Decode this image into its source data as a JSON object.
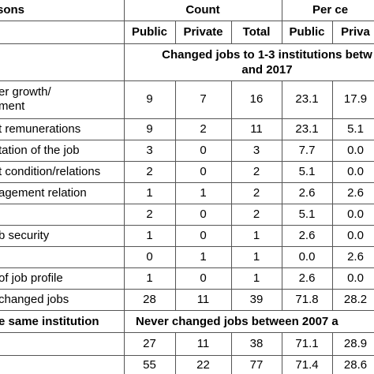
{
  "header": {
    "reasons": "sons",
    "count": "Count",
    "per_cent": "Per ce",
    "columns": [
      "Public",
      "Private",
      "Total",
      "Public",
      "Priva"
    ]
  },
  "section_1": {
    "title_lines": [
      "Changed jobs to 1-3 institutions betw",
      "and 2017"
    ],
    "rows": [
      {
        "label": [
          "er growth/",
          "ment"
        ],
        "cells": [
          "9",
          "7",
          "16",
          "23.1",
          "17.9"
        ]
      },
      {
        "label": [
          "t remunerations"
        ],
        "cells": [
          "9",
          "2",
          "11",
          "23.1",
          "5.1"
        ]
      },
      {
        "label": [
          "tation of the job"
        ],
        "cells": [
          "3",
          "0",
          "3",
          "7.7",
          "0.0"
        ]
      },
      {
        "label": [
          "t condition/relations"
        ],
        "cells": [
          "2",
          "0",
          "2",
          "5.1",
          "0.0"
        ]
      },
      {
        "label": [
          "agement relation"
        ],
        "cells": [
          "1",
          "1",
          "2",
          "2.6",
          "2.6"
        ]
      },
      {
        "label": [],
        "cells": [
          "2",
          "0",
          "2",
          "5.1",
          "0.0"
        ]
      },
      {
        "label": [
          "b security"
        ],
        "cells": [
          "1",
          "0",
          "1",
          "2.6",
          "0.0"
        ]
      },
      {
        "label": [],
        "cells": [
          "0",
          "1",
          "1",
          "0.0",
          "2.6"
        ]
      },
      {
        "label": [
          "of job profile"
        ],
        "cells": [
          "1",
          "0",
          "1",
          "2.6",
          "0.0"
        ]
      },
      {
        "label": [
          "changed jobs"
        ],
        "cells": [
          "28",
          "11",
          "39",
          "71.8",
          "28.2"
        ]
      }
    ]
  },
  "section_2": {
    "label": "e same institution",
    "title": "Never changed jobs between 2007 a",
    "rows": [
      {
        "label": [],
        "cells": [
          "27",
          "11",
          "38",
          "71.1",
          "28.9"
        ]
      },
      {
        "label": [],
        "cells": [
          "55",
          "22",
          "77",
          "71.4",
          "28.6"
        ]
      }
    ]
  }
}
